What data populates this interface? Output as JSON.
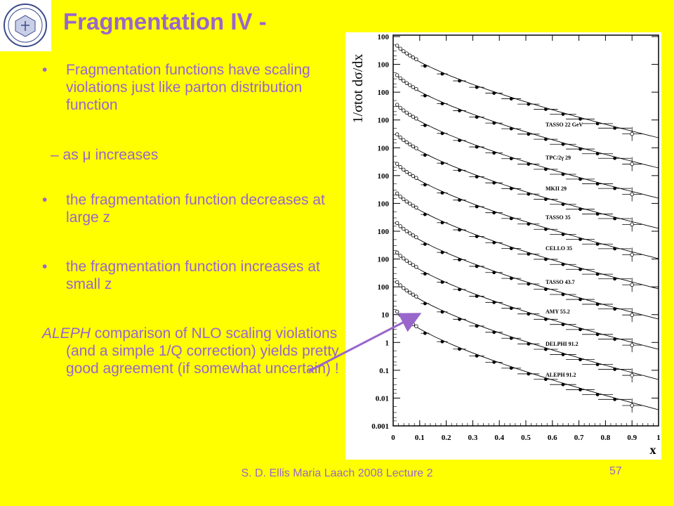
{
  "slide": {
    "title": "Fragmentation IV -",
    "bullets": [
      {
        "marker": "•",
        "text": "Fragmentation functions have scaling violations just like parton distribution function"
      },
      {
        "marker": "•",
        "text": "the fragmentation function decreases at large z"
      },
      {
        "marker": "•",
        "text": "the fragmentation function increases at small z"
      }
    ],
    "sub_item": "– as μ increases",
    "paragraph": {
      "emph": "ALEPH",
      "rest": " comparison of NLO scaling violations (and a simple 1/Q correction) yields pretty good agreement (if somewhat uncertain) !"
    },
    "footer": "S. D. Ellis   Maria Laach 2008 Lecture 2",
    "page_number": "57",
    "colors": {
      "background": "#ffff00",
      "text": "#9966cc",
      "arrow": "#9966cc"
    },
    "logo_icon": "university-seal-icon"
  },
  "chart_data": {
    "type": "scatter",
    "title": "",
    "ylabel": "1/σtot dσ/dx",
    "xlabel": "x",
    "y_scale": "log",
    "x_ticks": [
      "0",
      "0.1",
      "0.2",
      "0.3",
      "0.4",
      "0.5",
      "0.6",
      "0.7",
      "0.8",
      "0.9",
      "1"
    ],
    "y_tick_labels": [
      "100",
      "100",
      "100",
      "100",
      "100",
      "100",
      "100",
      "100",
      "100",
      "100",
      "10",
      "1",
      "0.1",
      "0.01",
      "0.001"
    ],
    "series_labels": [
      "TASSO 22 GeV",
      "TPC/2γ 29",
      "MKII 29",
      "TASSO 35",
      "CELLO 35",
      "TASSO 43.7",
      "AMY 55.2",
      "DELPHI 91.2",
      "ALEPH 91.2"
    ]
  }
}
